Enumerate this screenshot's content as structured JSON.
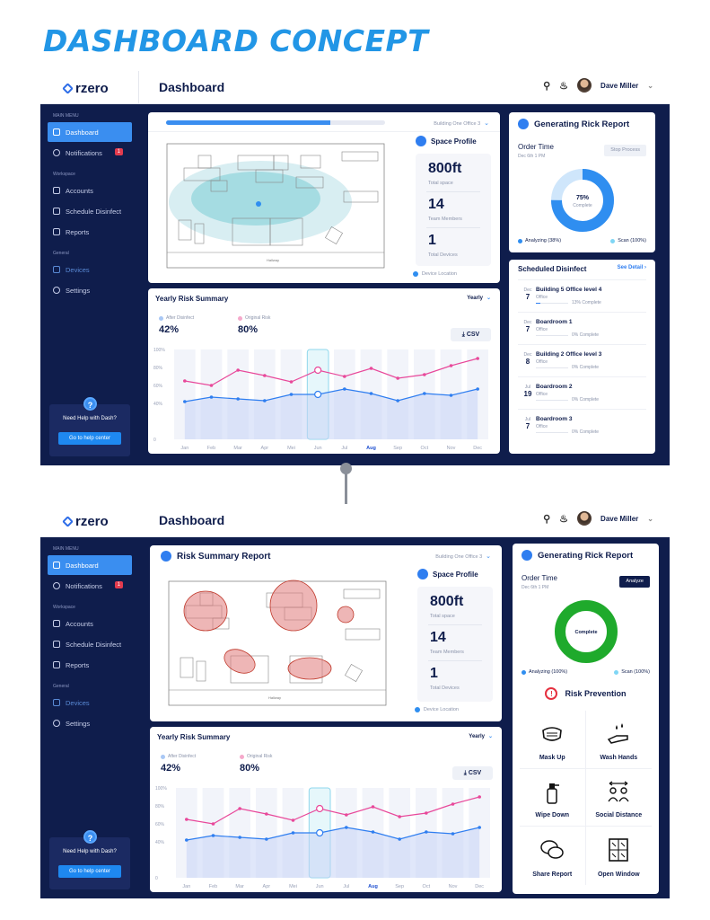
{
  "page_title": "DASHBOARD CONCEPT",
  "brand": "rzero",
  "user_name": "Dave Miller",
  "topbar_title": "Dashboard",
  "sidebar": {
    "main_menu_label": "MAIN MENU",
    "workspace_label": "Workspace",
    "general_label": "General",
    "items": {
      "dashboard": "Dashboard",
      "notifications": "Notifications",
      "notifications_badge": "1",
      "accounts": "Accounts",
      "schedule": "Schedule Disinfect",
      "reports": "Reports",
      "devices": "Devices",
      "settings": "Settings"
    },
    "help_text": "Need Help with Dash?",
    "help_button": "Go to help center"
  },
  "map": {
    "building": "Building One Office 3",
    "report_title": "Risk Summary Report",
    "progress": 0.75,
    "hallway_label": "Hallway"
  },
  "space_profile": {
    "title": "Space Profile",
    "total_space": "800ft",
    "total_space_label": "Total space",
    "team_members": "14",
    "team_members_label": "Team Members",
    "total_devices": "1",
    "total_devices_label": "Total Devices",
    "device_location": "Device Location"
  },
  "risk_summary": {
    "title": "Yearly Risk Summary",
    "period": "Yearly",
    "after_label": "After Disinfect",
    "after_value": "42%",
    "original_label": "Original Risk",
    "original_value": "80%",
    "csv_label": "CSV"
  },
  "chart_data": {
    "type": "line",
    "categories": [
      "Jan",
      "Feb",
      "Mar",
      "Apr",
      "Mei",
      "Jun",
      "Jul",
      "Aug",
      "Sep",
      "Oct",
      "Nov",
      "Dec"
    ],
    "y_ticks": [
      "100%",
      "80%",
      "60%",
      "40%",
      "0"
    ],
    "ylim": [
      0,
      100
    ],
    "highlight": "Jun",
    "active_category": "Aug",
    "series": [
      {
        "name": "Original Risk",
        "color": "#e8489a",
        "values": [
          65,
          60,
          77,
          71,
          64,
          77,
          70,
          79,
          68,
          72,
          82,
          90
        ]
      },
      {
        "name": "After Disinfect",
        "color": "#2f7ef0",
        "values": [
          42,
          47,
          45,
          43,
          50,
          50,
          56,
          51,
          43,
          51,
          49,
          56
        ]
      }
    ]
  },
  "report1": {
    "title": "Generating Rick Report",
    "order_time": "Order Time",
    "order_date": "Dec 6th 1 PM",
    "button": "Stop Process",
    "percent": "75%",
    "percent_label": "Complete",
    "progress": 0.75,
    "analyzing": "Analyzing (38%)",
    "scan": "Scan (100%)"
  },
  "report2": {
    "title": "Generating Rick Report",
    "order_time": "Order Time",
    "order_date": "Dec 6th 1 PM",
    "button": "Analyze",
    "status": "Complete",
    "analyzing": "Analyzing (100%)",
    "scan": "Scan (100%)"
  },
  "scheduled": {
    "title": "Scheduled Disinfect",
    "see_detail": "See Detail",
    "items": [
      {
        "month": "Dec",
        "day": "7",
        "name": "Building 5 Office level 4",
        "type": "Office",
        "pct": "13% Complete",
        "progress": 0.13
      },
      {
        "month": "Dec",
        "day": "7",
        "name": "Boardroom 1",
        "type": "Office",
        "pct": "0% Complete",
        "progress": 0
      },
      {
        "month": "Dec",
        "day": "8",
        "name": "Building 2 Office level 3",
        "type": "Office",
        "pct": "0% Complete",
        "progress": 0
      },
      {
        "month": "Jul",
        "day": "19",
        "name": "Boardroom 2",
        "type": "Office",
        "pct": "0% Complete",
        "progress": 0
      },
      {
        "month": "Jul",
        "day": "7",
        "name": "Boardroom 3",
        "type": "Office",
        "pct": "0% Complete",
        "progress": 0
      }
    ]
  },
  "prevention": {
    "title": "Risk Prevention",
    "items": [
      {
        "label": "Mask Up",
        "icon": "mask-icon"
      },
      {
        "label": "Wash Hands",
        "icon": "wash-hands-icon"
      },
      {
        "label": "Wipe Down",
        "icon": "spray-bottle-icon"
      },
      {
        "label": "Social Distance",
        "icon": "social-distance-icon"
      },
      {
        "label": "Share Report",
        "icon": "chat-bubbles-icon"
      },
      {
        "label": "Open Window",
        "icon": "window-icon"
      }
    ]
  },
  "colors": {
    "navy": "#0f1d4c",
    "accent": "#3a8ef0",
    "original": "#e8489a",
    "after": "#2f7ef0",
    "complete": "#1faa2c",
    "risk_zone": "#e07a7a"
  }
}
